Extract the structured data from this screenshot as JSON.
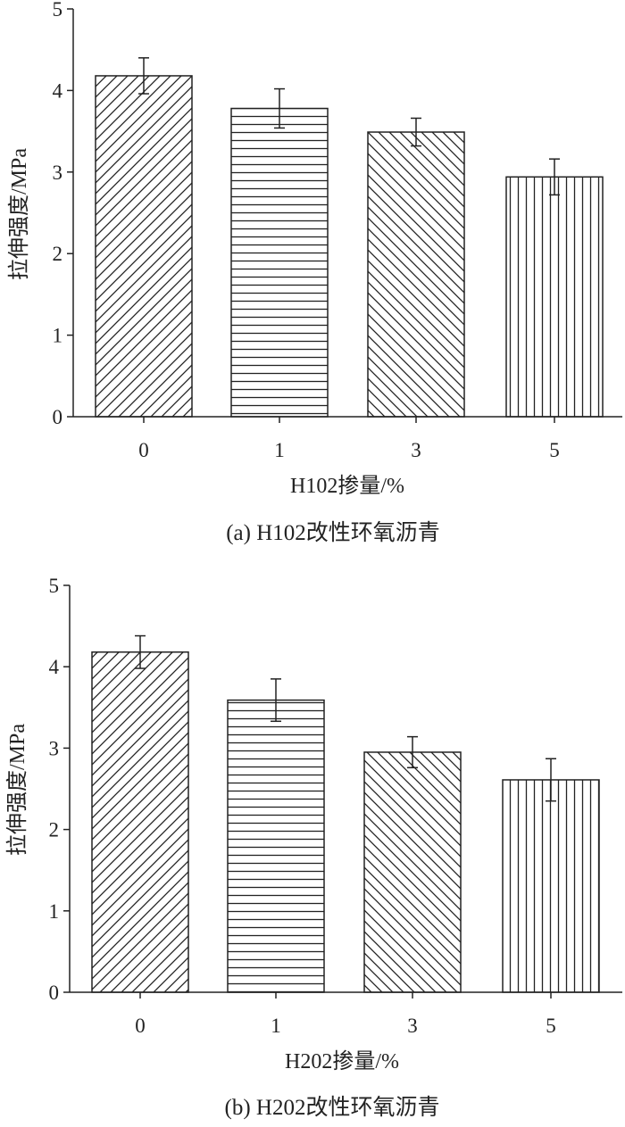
{
  "chart_data": [
    {
      "type": "bar",
      "caption": "(a) H102改性环氧沥青",
      "xlabel": "H102掺量/%",
      "ylabel": "拉伸强度/MPa",
      "categories": [
        "0",
        "1",
        "3",
        "5"
      ],
      "values": [
        4.18,
        3.78,
        3.49,
        2.94
      ],
      "errors": [
        0.22,
        0.24,
        0.17,
        0.22
      ],
      "patterns": [
        "diag-right",
        "horizontal",
        "diag-left",
        "vertical"
      ],
      "ylim": [
        0,
        5
      ],
      "yticks": [
        "0",
        "1",
        "2",
        "3",
        "4",
        "5"
      ],
      "grid": false,
      "legend": "none"
    },
    {
      "type": "bar",
      "caption": "(b) H202改性环氧沥青",
      "xlabel": "H202掺量/%",
      "ylabel": "拉伸强度/MPa",
      "categories": [
        "0",
        "1",
        "3",
        "5"
      ],
      "values": [
        4.18,
        3.59,
        2.95,
        2.61
      ],
      "errors": [
        0.2,
        0.26,
        0.19,
        0.26
      ],
      "patterns": [
        "diag-right",
        "horizontal",
        "diag-left",
        "vertical"
      ],
      "ylim": [
        0,
        5
      ],
      "yticks": [
        "0",
        "1",
        "2",
        "3",
        "4",
        "5"
      ],
      "grid": false,
      "legend": "none"
    }
  ]
}
